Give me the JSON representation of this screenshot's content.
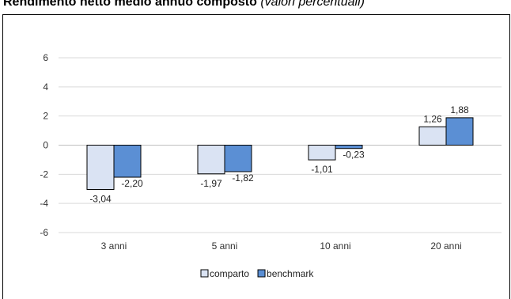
{
  "title": {
    "bold_part": "Rendimento netto medio annuo composto",
    "italic_part": "(valori percentuali)"
  },
  "chart_data": {
    "type": "bar",
    "title": "Rendimento netto medio annuo composto (valori percentuali)",
    "categories": [
      "3 anni",
      "5 anni",
      "10 anni",
      "20 anni"
    ],
    "series": [
      {
        "name": "comparto",
        "values": [
          -3.04,
          -1.97,
          -1.01,
          1.26
        ],
        "labels": [
          "-3,04",
          "-1,97",
          "-1,01",
          "1,26"
        ],
        "color": "#dae3f3"
      },
      {
        "name": "benchmark",
        "values": [
          -2.2,
          -1.82,
          -0.23,
          1.88
        ],
        "labels": [
          "-2,20",
          "-1,82",
          "-0,23",
          "1,88"
        ],
        "color": "#5b8fd4"
      }
    ],
    "ylim": [
      -6,
      6
    ],
    "yticks": [
      6,
      4,
      2,
      0,
      -2,
      -4,
      -6
    ],
    "grid": true,
    "legend": "bottom-center"
  }
}
